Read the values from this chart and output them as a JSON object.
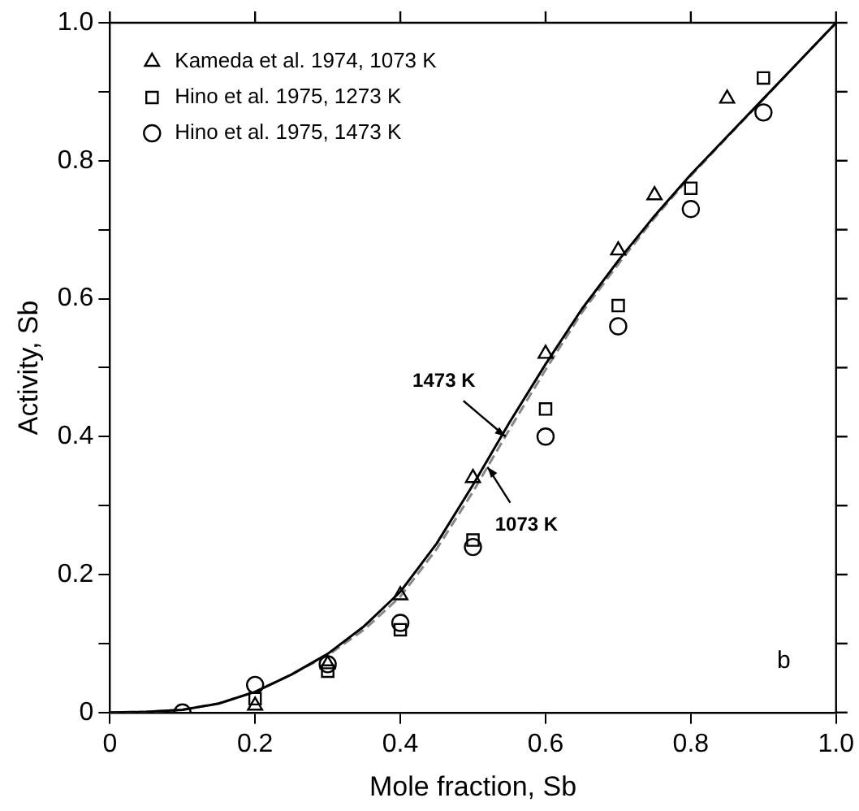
{
  "chart_data": {
    "type": "scatter",
    "xlabel": "Mole fraction, Sb",
    "ylabel": "Activity, Sb",
    "xlim": [
      0,
      1
    ],
    "ylim": [
      0,
      1
    ],
    "xticks": [
      0,
      {
        "value": 0.2,
        "label": "0.2"
      },
      {
        "value": 0.4,
        "label": "0.4"
      },
      {
        "value": 0.6,
        "label": "0.6"
      },
      {
        "value": 0.8,
        "label": "0.8"
      },
      {
        "value": 1,
        "label": "1.0"
      }
    ],
    "yticks": [
      0,
      {
        "value": 0.1,
        "label": null
      },
      {
        "value": 0.2,
        "label": "0.2"
      },
      {
        "value": 0.3,
        "label": null
      },
      {
        "value": 0.4,
        "label": "0.4"
      },
      {
        "value": 0.5,
        "label": null
      },
      {
        "value": 0.6,
        "label": "0.6"
      },
      {
        "value": 0.7,
        "label": null
      },
      {
        "value": 0.8,
        "label": "0.8"
      },
      {
        "value": 0.9,
        "label": null
      },
      {
        "value": 1,
        "label": "1.0"
      }
    ],
    "grid": false,
    "legend": "top left",
    "series": [
      {
        "name": "Kameda et al. 1974, 1073 K",
        "color": "#000000",
        "marker": "triangle",
        "x": [
          0.2,
          0.3,
          0.4,
          0.5,
          0.6,
          0.7,
          0.75,
          0.85
        ],
        "values": [
          0.01,
          0.07,
          0.17,
          0.34,
          0.52,
          0.67,
          0.75,
          0.89
        ]
      },
      {
        "name": "Hino et al. 1975, 1273 K",
        "color": "#000000",
        "marker": "square",
        "x": [
          0.2,
          0.3,
          0.4,
          0.5,
          0.6,
          0.7,
          0.8,
          0.9
        ],
        "values": [
          0.02,
          0.06,
          0.12,
          0.25,
          0.44,
          0.59,
          0.76,
          0.92
        ]
      },
      {
        "name": "Hino et al. 1975, 1473 K",
        "color": "#000000",
        "marker": "circle",
        "x": [
          0.1,
          0.2,
          0.3,
          0.4,
          0.5,
          0.6,
          0.7,
          0.8,
          0.9
        ],
        "values": [
          0,
          0.04,
          0.07,
          0.13,
          0.24,
          0.4,
          0.56,
          0.73,
          0.87
        ]
      },
      {
        "type": "line",
        "color": "#000000",
        "line_style": "solid",
        "marker": "none",
        "x": [
          0,
          0.05,
          0.1,
          0.15,
          0.2,
          0.25,
          0.3,
          0.35,
          0.4,
          0.45,
          0.5,
          0.55,
          0.6,
          0.65,
          0.7,
          0.75,
          0.8,
          0.85,
          0.9,
          0.95,
          1
        ],
        "values": [
          0,
          0.001,
          0.004,
          0.013,
          0.03,
          0.055,
          0.085,
          0.125,
          0.175,
          0.245,
          0.33,
          0.42,
          0.505,
          0.585,
          0.655,
          0.72,
          0.78,
          0.835,
          0.89,
          0.945,
          1
        ]
      },
      {
        "type": "line",
        "color": "#888888",
        "line_style": "dashed",
        "marker": "none",
        "x": [
          0,
          0.05,
          0.1,
          0.15,
          0.2,
          0.25,
          0.3,
          0.35,
          0.4,
          0.45,
          0.5,
          0.55,
          0.6,
          0.65,
          0.7,
          0.75,
          0.8,
          0.85,
          0.9,
          0.95,
          1
        ],
        "values": [
          0,
          0.001,
          0.004,
          0.013,
          0.03,
          0.055,
          0.083,
          0.12,
          0.168,
          0.237,
          0.32,
          0.41,
          0.497,
          0.58,
          0.65,
          0.717,
          0.778,
          0.834,
          0.889,
          0.945,
          1
        ]
      }
    ],
    "annotations": [
      {
        "text": "1473 K",
        "x": 0.545,
        "y": 0.4
      },
      {
        "text": "1073 K",
        "x": 0.52,
        "y": 0.356
      },
      "b"
    ]
  }
}
